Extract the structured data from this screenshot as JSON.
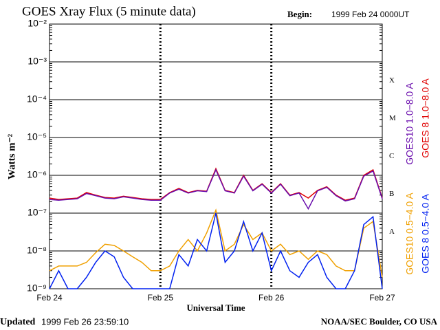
{
  "chart_data": {
    "type": "line",
    "title": "GOES Xray Flux (5 minute data)",
    "begin_label": "Begin:",
    "begin": "1999 Feb 24 0000UT",
    "updated_label": "Updated",
    "updated": "1999 Feb 26 23:59:10",
    "credit": "NOAA/SEC Boulder, CO USA",
    "y_label": "Watts m⁻²",
    "x_label": "Universal Time",
    "yscale": "log",
    "ylim": [
      1e-09,
      0.01
    ],
    "yticks": [
      {
        "value": 1e-09,
        "label": "10⁻⁹"
      },
      {
        "value": 1e-08,
        "label": "10⁻⁸"
      },
      {
        "value": 1e-07,
        "label": "10⁻⁷"
      },
      {
        "value": 1e-06,
        "label": "10⁻⁶"
      },
      {
        "value": 1e-05,
        "label": "10⁻⁵"
      },
      {
        "value": 0.0001,
        "label": "10⁻⁴"
      },
      {
        "value": 0.001,
        "label": "10⁻³"
      },
      {
        "value": 0.01,
        "label": "10⁻²"
      }
    ],
    "xlim": [
      0,
      72
    ],
    "xticks": [
      {
        "value": 0,
        "label": "Feb 24"
      },
      {
        "value": 24,
        "label": "Feb 25"
      },
      {
        "value": 48,
        "label": "Feb 26"
      },
      {
        "value": 72,
        "label": "Feb 27"
      }
    ],
    "flare_classes": [
      "A",
      "B",
      "C",
      "M",
      "X"
    ],
    "grid": true,
    "x": [
      0,
      2,
      4,
      6,
      8,
      10,
      12,
      14,
      16,
      18,
      20,
      22,
      24,
      26,
      28,
      30,
      32,
      34,
      36,
      38,
      40,
      42,
      44,
      46,
      48,
      50,
      52,
      54,
      56,
      58,
      60,
      62,
      64,
      66,
      68,
      70,
      72
    ],
    "series": [
      {
        "name": "GOES10 1.0−8.0 A",
        "color": "#6a0dad",
        "values": [
          2.3e-07,
          2.2e-07,
          2.3e-07,
          2.4e-07,
          3.3e-07,
          2.9e-07,
          2.5e-07,
          2.4e-07,
          2.7e-07,
          2.5e-07,
          2.3e-07,
          2.2e-07,
          2.2e-07,
          3.4e-07,
          4.3e-07,
          3.4e-07,
          3.9e-07,
          3.7e-07,
          1.4e-06,
          3.9e-07,
          3.4e-07,
          9.5e-07,
          3.9e-07,
          5.8e-07,
          3.4e-07,
          5.8e-07,
          2.9e-07,
          3.4e-07,
          1.3e-07,
          3.9e-07,
          4.8e-07,
          2.9e-07,
          2.1e-07,
          2.4e-07,
          9.5e-07,
          1.3e-06,
          2.4e-07
        ]
      },
      {
        "name": "GOES 8 1.0−8.0 A",
        "color": "#e00000",
        "values": [
          2.5e-07,
          2.3e-07,
          2.4e-07,
          2.5e-07,
          3.5e-07,
          3e-07,
          2.6e-07,
          2.5e-07,
          2.8e-07,
          2.6e-07,
          2.4e-07,
          2.3e-07,
          2.3e-07,
          3.5e-07,
          4.5e-07,
          3.5e-07,
          4e-07,
          3.8e-07,
          1.5e-06,
          4e-07,
          3.5e-07,
          1e-06,
          4e-07,
          6e-07,
          3.5e-07,
          6e-07,
          3e-07,
          3.5e-07,
          2.5e-07,
          4e-07,
          5e-07,
          3e-07,
          2.2e-07,
          2.5e-07,
          1e-06,
          1.4e-06,
          2.5e-07
        ]
      },
      {
        "name": "GOES10 0.5−4.0 A",
        "color": "#f0a000",
        "values": [
          3e-09,
          4e-09,
          4e-09,
          4e-09,
          5e-09,
          9e-09,
          1.5e-08,
          1.4e-08,
          1e-08,
          7e-09,
          5e-09,
          3e-09,
          3e-09,
          4e-09,
          1e-08,
          2e-08,
          1e-08,
          3e-08,
          1.2e-07,
          1e-08,
          1.5e-08,
          5e-08,
          2e-08,
          3e-08,
          1e-08,
          1.5e-08,
          8e-09,
          1e-08,
          6e-09,
          1e-08,
          8e-09,
          4e-09,
          3e-09,
          3e-09,
          4e-08,
          6e-08,
          2e-09
        ]
      },
      {
        "name": "GOES 8 0.5−4.0 A",
        "color": "#0020f0",
        "values": [
          1e-09,
          3e-09,
          1e-09,
          1e-09,
          2e-09,
          5e-09,
          1e-08,
          7e-09,
          2e-09,
          1e-09,
          1e-09,
          1e-09,
          1e-09,
          1e-09,
          8e-09,
          4e-09,
          2e-08,
          1e-08,
          1e-07,
          5e-09,
          1e-08,
          6e-08,
          1e-08,
          3e-08,
          3e-09,
          1e-08,
          3e-09,
          2e-09,
          5e-09,
          8e-09,
          2e-09,
          1e-09,
          1e-09,
          3e-09,
          5e-08,
          8e-08,
          1e-09
        ]
      }
    ]
  }
}
